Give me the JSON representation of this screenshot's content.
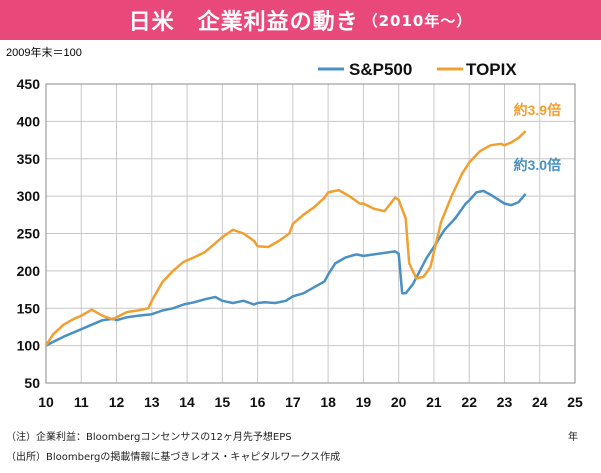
{
  "title": {
    "main": "日米　企業利益の動き",
    "sub": "（2010年〜）"
  },
  "base_note": "2009年末＝100",
  "x_unit": "年",
  "footnotes": [
    "（注）企業利益：Bloombergコンセンサスの12ヶ月先予想EPS",
    "（出所）Bloombergの掲載情報に基づきレオス・キャピタルワークス作成"
  ],
  "colors": {
    "title_bg": "#e8497a",
    "sp500": "#4a90c2",
    "topix": "#f0a030",
    "grid": "#c8c8c8"
  },
  "chart_data": {
    "type": "line",
    "xlim": [
      10,
      25
    ],
    "ylim": [
      50,
      450
    ],
    "x_ticks": [
      10,
      11,
      12,
      13,
      14,
      15,
      16,
      17,
      18,
      19,
      20,
      21,
      22,
      23,
      24,
      25
    ],
    "y_ticks": [
      50,
      100,
      150,
      200,
      250,
      300,
      350,
      400,
      450
    ],
    "grid": true,
    "legend_position": "top-right",
    "series": [
      {
        "name": "S&P500",
        "color": "#4a90c2",
        "x": [
          10.0,
          10.2,
          10.5,
          10.8,
          11.0,
          11.3,
          11.6,
          11.9,
          12.0,
          12.3,
          12.6,
          13.0,
          13.3,
          13.6,
          13.9,
          14.2,
          14.5,
          14.8,
          15.0,
          15.3,
          15.6,
          15.9,
          16.0,
          16.2,
          16.5,
          16.8,
          17.0,
          17.3,
          17.6,
          17.9,
          18.0,
          18.2,
          18.5,
          18.8,
          19.0,
          19.3,
          19.6,
          19.9,
          20.0,
          20.1,
          20.2,
          20.4,
          20.6,
          20.8,
          21.0,
          21.3,
          21.6,
          21.9,
          22.0,
          22.2,
          22.4,
          22.6,
          22.8,
          23.0,
          23.2,
          23.4,
          23.6
        ],
        "y": [
          100,
          105,
          112,
          118,
          122,
          128,
          134,
          136,
          134,
          138,
          140,
          142,
          147,
          150,
          155,
          158,
          162,
          165,
          160,
          157,
          160,
          155,
          157,
          158,
          157,
          160,
          166,
          170,
          178,
          186,
          195,
          210,
          218,
          222,
          220,
          222,
          224,
          226,
          223,
          170,
          170,
          182,
          200,
          218,
          232,
          255,
          270,
          290,
          294,
          305,
          307,
          302,
          296,
          290,
          288,
          292,
          303
        ]
      },
      {
        "name": "TOPIX",
        "color": "#f0a030",
        "x": [
          10.0,
          10.2,
          10.5,
          10.8,
          11.0,
          11.3,
          11.6,
          11.9,
          12.0,
          12.3,
          12.6,
          12.9,
          13.0,
          13.3,
          13.6,
          13.9,
          14.2,
          14.5,
          14.8,
          15.0,
          15.3,
          15.6,
          15.9,
          16.0,
          16.3,
          16.6,
          16.9,
          17.0,
          17.3,
          17.6,
          17.9,
          18.0,
          18.3,
          18.6,
          18.9,
          19.0,
          19.3,
          19.6,
          19.9,
          20.0,
          20.2,
          20.3,
          20.5,
          20.7,
          20.9,
          21.0,
          21.2,
          21.5,
          21.8,
          22.0,
          22.3,
          22.6,
          22.9,
          23.0,
          23.2,
          23.4,
          23.6
        ],
        "y": [
          100,
          115,
          128,
          136,
          140,
          148,
          140,
          135,
          138,
          145,
          147,
          150,
          160,
          185,
          200,
          212,
          218,
          225,
          237,
          245,
          255,
          250,
          240,
          233,
          232,
          240,
          250,
          263,
          275,
          285,
          298,
          305,
          308,
          300,
          290,
          290,
          283,
          280,
          298,
          295,
          270,
          210,
          190,
          192,
          205,
          225,
          265,
          300,
          330,
          345,
          360,
          368,
          370,
          368,
          372,
          378,
          387
        ]
      }
    ],
    "annotations": [
      {
        "text": "約3.9倍",
        "series": "TOPIX",
        "x": 23.6,
        "y": 387
      },
      {
        "text": "約3.0倍",
        "series": "S&P500",
        "x": 23.6,
        "y": 303
      }
    ]
  }
}
